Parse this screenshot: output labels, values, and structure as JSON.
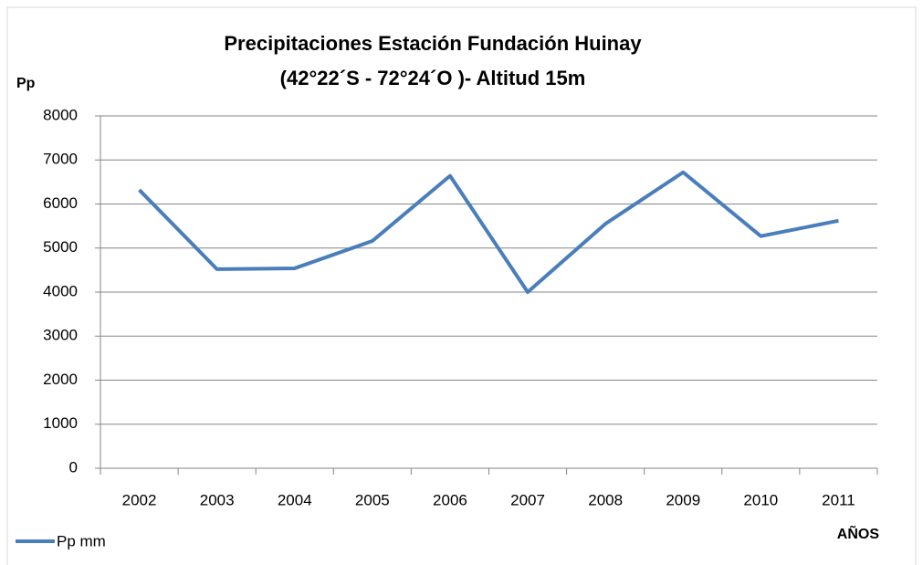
{
  "chart_data": {
    "type": "line",
    "title": [
      "Precipitaciones  Estación Fundación Huinay",
      "(42°22´S - 72°24´O )- Altitud 15m"
    ],
    "y_label": "Pp",
    "x_label": "AÑOS",
    "categories": [
      "2002",
      "2003",
      "2004",
      "2005",
      "2006",
      "2007",
      "2008",
      "2009",
      "2010",
      "2011"
    ],
    "series": [
      {
        "name": "Pp mm",
        "color": "#4a7ebb",
        "values": [
          6320,
          4520,
          4540,
          5160,
          6640,
          4000,
          5550,
          6720,
          5270,
          5620
        ]
      }
    ],
    "ylim": [
      0,
      8000
    ],
    "yticks": [
      0,
      1000,
      2000,
      3000,
      4000,
      5000,
      6000,
      7000,
      8000
    ],
    "grid": true,
    "legend": "bottom-left"
  }
}
